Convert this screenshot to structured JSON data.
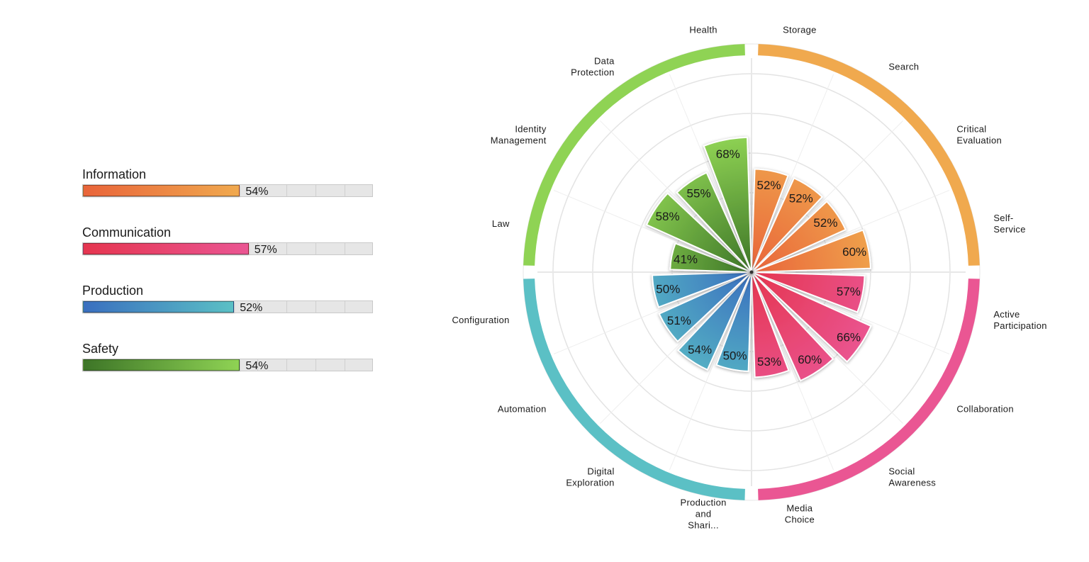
{
  "legend": [
    {
      "name": "Information",
      "value_label": "54%",
      "value": 54,
      "color_start": "#e9643a",
      "color_end": "#f0a94e"
    },
    {
      "name": "Communication",
      "value_label": "57%",
      "value": 57,
      "color_start": "#e5354f",
      "color_end": "#ea5693"
    },
    {
      "name": "Production",
      "value_label": "52%",
      "value": 52,
      "color_start": "#3a6fbf",
      "color_end": "#5bc0c5"
    },
    {
      "name": "Safety",
      "value_label": "54%",
      "value": 54,
      "color_start": "#3d7527",
      "color_end": "#8fd354"
    }
  ],
  "chart_data": {
    "type": "polar-bar",
    "rmax": 100,
    "grid_rings": [
      20,
      40,
      60,
      80,
      100
    ],
    "groups": [
      {
        "name": "Information",
        "color": "#f0a94e",
        "dark": "#e9643a",
        "categories": [
          "Storage",
          "Search",
          "Critical Evaluation",
          "Self-Service"
        ],
        "values": [
          52,
          52,
          52,
          60
        ],
        "labels": [
          "52%",
          "52%",
          "52%",
          "60%"
        ]
      },
      {
        "name": "Communication",
        "color": "#ea5693",
        "dark": "#e5354f",
        "categories": [
          "Active Participation",
          "Collaboration",
          "Social Awareness",
          "Media Choice"
        ],
        "values": [
          57,
          66,
          60,
          53
        ],
        "labels": [
          "57%",
          "66%",
          "60%",
          "53%"
        ]
      },
      {
        "name": "Production",
        "color": "#5bc0c5",
        "dark": "#3a6fbf",
        "categories": [
          "Production and Shari...",
          "Digital Exploration",
          "Automation",
          "Configuration"
        ],
        "values": [
          50,
          54,
          51,
          50
        ],
        "labels": [
          "50%",
          "54%",
          "51%",
          "50%"
        ]
      },
      {
        "name": "Safety",
        "color": "#8fd354",
        "dark": "#3d7527",
        "categories": [
          "Law",
          "Identity Management",
          "Data Protection",
          "Health"
        ],
        "values": [
          41,
          58,
          55,
          68
        ],
        "labels": [
          "41%",
          "58%",
          "55%",
          "68%"
        ]
      }
    ]
  }
}
